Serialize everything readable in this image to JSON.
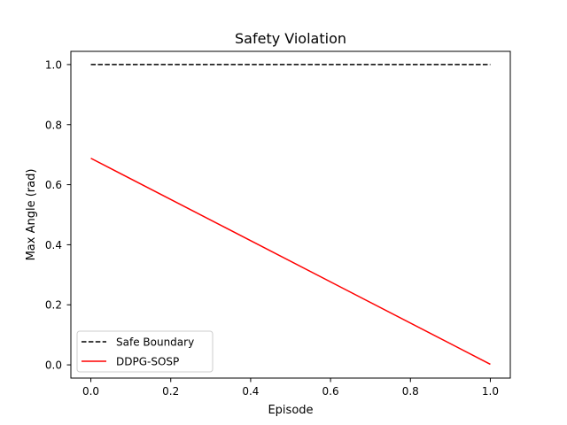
{
  "chart_data": {
    "type": "line",
    "title": "Safety Violation",
    "xlabel": "Episode",
    "ylabel": "Max Angle (rad)",
    "xlim": [
      -0.05,
      1.05
    ],
    "ylim": [
      -0.044,
      1.044
    ],
    "xticks": [
      "0.0",
      "0.2",
      "0.4",
      "0.6",
      "0.8",
      "1.0"
    ],
    "yticks": [
      "0.0",
      "0.2",
      "0.4",
      "0.6",
      "0.8",
      "1.0"
    ],
    "grid": false,
    "legend_position": "lower-left",
    "series": [
      {
        "name": "Safe Boundary",
        "color": "#000000",
        "style": "dashed",
        "x": [
          0.0,
          1.0
        ],
        "y": [
          1.0,
          1.0
        ]
      },
      {
        "name": "DDPG-SOSP",
        "color": "#ff0000",
        "style": "solid",
        "x": [
          0.0,
          1.0
        ],
        "y": [
          0.688,
          0.002
        ]
      }
    ]
  }
}
